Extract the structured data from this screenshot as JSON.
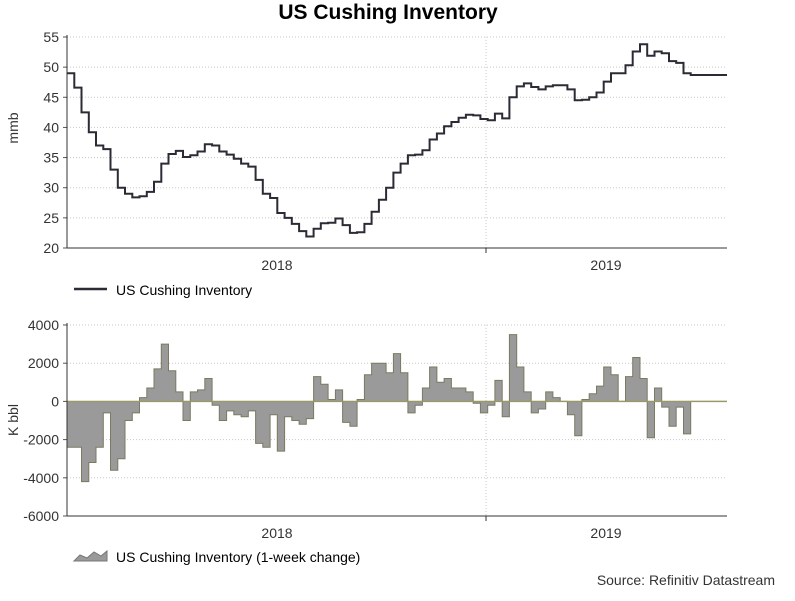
{
  "title": "US Cushing Inventory",
  "source": "Source: Refinitiv Datastream",
  "chart_data": [
    {
      "type": "line",
      "ylabel": "mmb",
      "ylim": [
        20,
        55
      ],
      "yticks": [
        20,
        25,
        30,
        35,
        40,
        45,
        50,
        55
      ],
      "xlabels": [
        "2018",
        "2019"
      ],
      "legend": "US Cushing Inventory",
      "color": "#2b2b35",
      "series": [
        {
          "name": "US Cushing Inventory",
          "weeks": 91,
          "values": [
            49.0,
            46.6,
            42.5,
            39.2,
            37.0,
            36.4,
            33.0,
            30.0,
            29.0,
            28.4,
            28.6,
            29.3,
            31.0,
            34.0,
            35.6,
            36.1,
            35.1,
            35.4,
            36.0,
            37.2,
            37.0,
            36.0,
            35.5,
            34.8,
            34.0,
            33.5,
            31.3,
            29.0,
            28.3,
            25.8,
            25.0,
            24.0,
            22.8,
            21.9,
            23.2,
            24.1,
            24.2,
            24.9,
            23.8,
            22.5,
            22.6,
            24.0,
            26.0,
            28.0,
            30.0,
            32.5,
            34.0,
            35.4,
            35.5,
            36.2,
            38.0,
            39.0,
            40.2,
            40.9,
            41.6,
            42.1,
            42.0,
            41.4,
            41.2,
            42.3,
            41.5,
            45.0,
            46.8,
            47.3,
            46.7,
            46.3,
            46.8,
            47.0,
            47.0,
            46.3,
            44.5,
            44.6,
            45.0,
            45.8,
            47.6,
            49.0,
            49.0,
            50.3,
            52.6,
            53.8,
            51.9,
            52.6,
            52.3,
            51.0,
            50.7,
            49.0,
            48.7,
            48.7,
            48.7,
            48.7,
            48.7
          ]
        }
      ]
    },
    {
      "type": "area",
      "ylabel": "K bbl",
      "ylim": [
        -6000,
        4000
      ],
      "yticks": [
        -6000,
        -4000,
        -2000,
        0,
        2000,
        4000
      ],
      "xlabels": [
        "2018",
        "2019"
      ],
      "legend": "US Cushing Inventory (1-week change)",
      "color": "#9a9a9a",
      "series": [
        {
          "name": "US Cushing Inventory (1-week change)",
          "weeks": 91,
          "values": [
            -2400,
            -2400,
            -4200,
            -3200,
            -2400,
            -600,
            -3600,
            -3000,
            -1000,
            -600,
            200,
            700,
            1700,
            3000,
            1600,
            500,
            -1000,
            500,
            600,
            1200,
            -200,
            -1000,
            -500,
            -700,
            -800,
            -500,
            -2200,
            -2400,
            -700,
            -2600,
            -800,
            -1000,
            -1200,
            -900,
            1300,
            900,
            100,
            600,
            -1100,
            -1300,
            100,
            1400,
            2000,
            2000,
            1500,
            2500,
            1500,
            -600,
            -200,
            700,
            1800,
            1000,
            1200,
            700,
            700,
            500,
            -100,
            -600,
            -200,
            1100,
            -800,
            3500,
            1800,
            500,
            -600,
            -400,
            500,
            200,
            0,
            -700,
            -1800,
            100,
            400,
            800,
            1800,
            1400,
            0,
            1300,
            2300,
            1200,
            -1900,
            700,
            -300,
            -1300,
            -300,
            -1700,
            0,
            0,
            0,
            0,
            0
          ]
        }
      ]
    }
  ]
}
